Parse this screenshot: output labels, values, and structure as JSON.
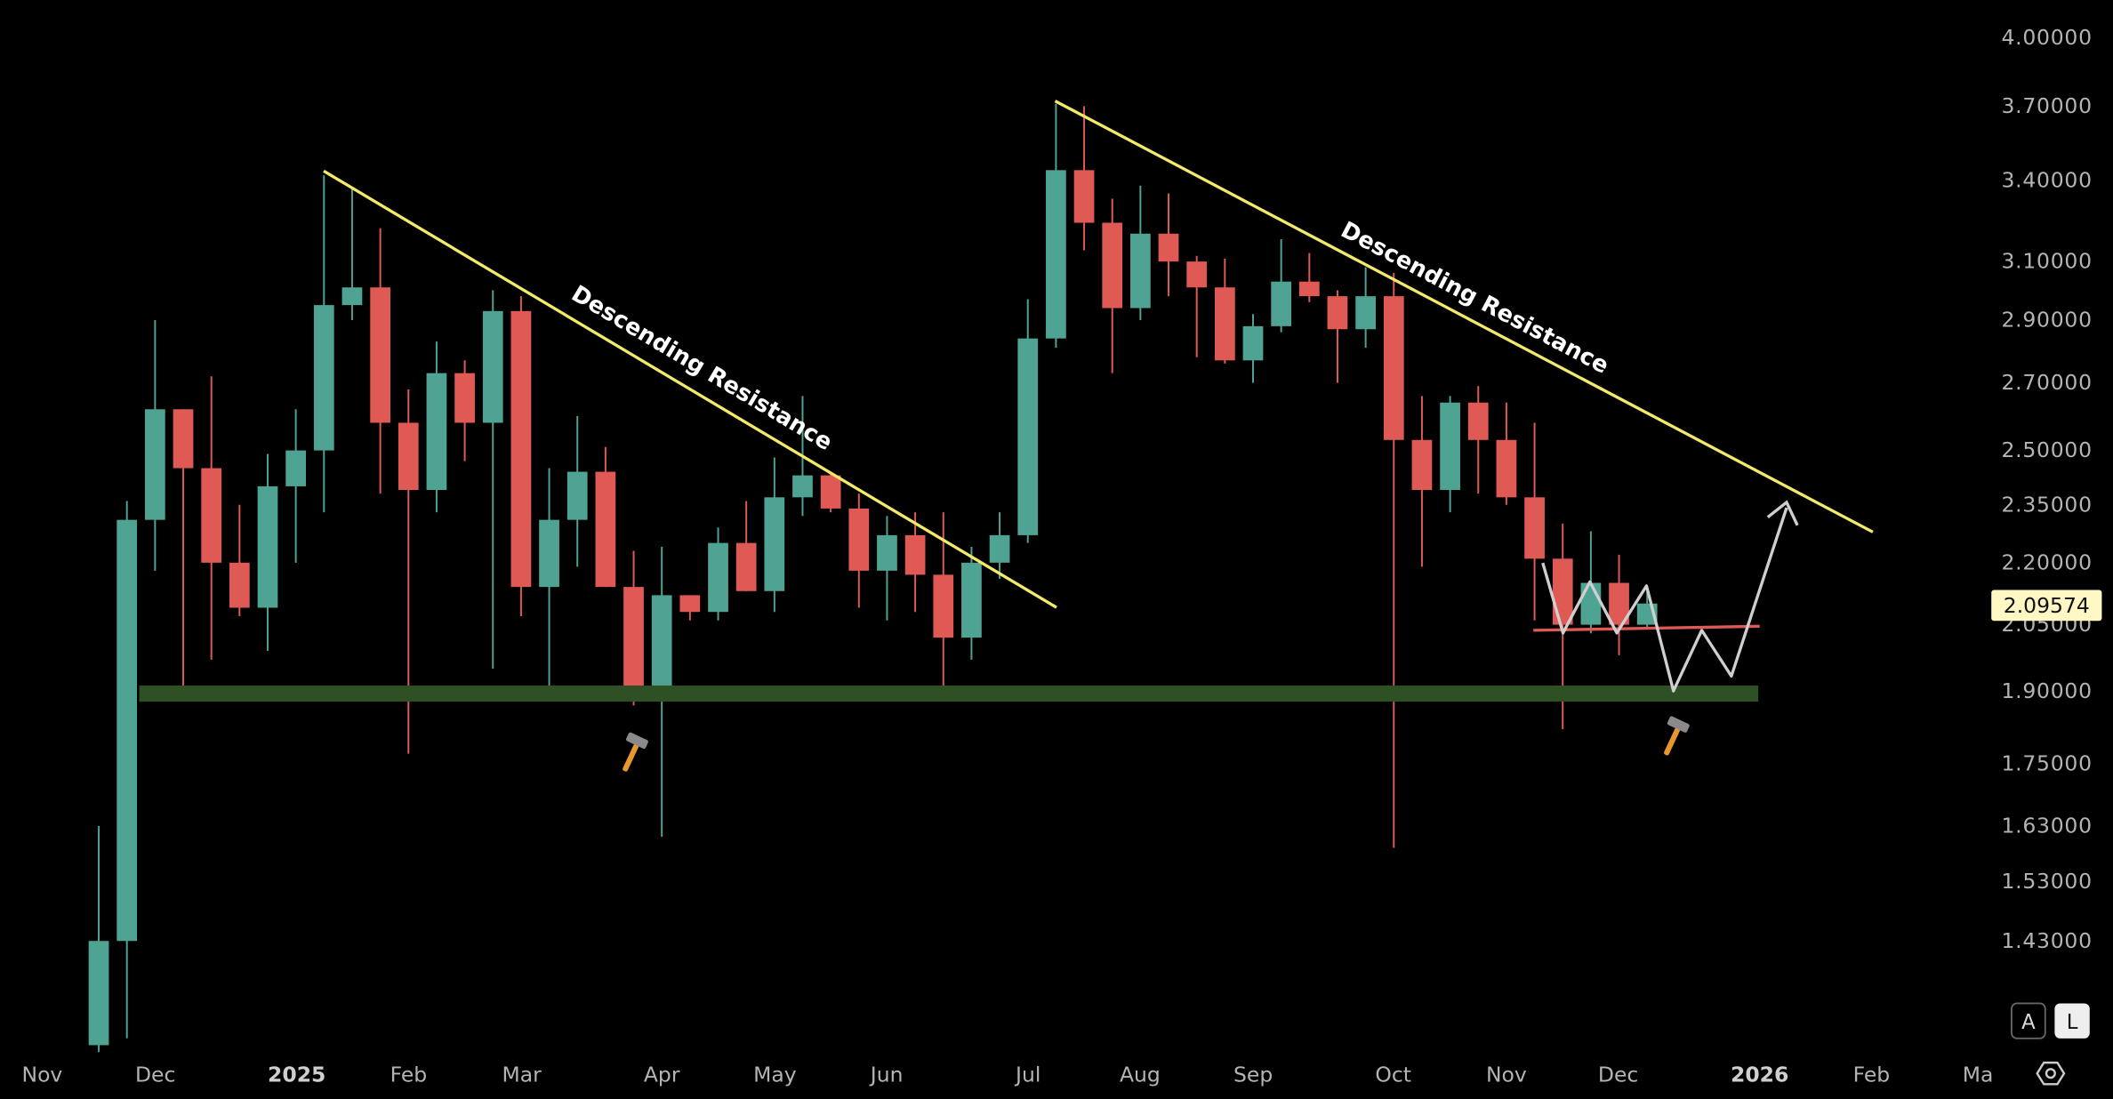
{
  "chart_data": {
    "type": "candlestick",
    "title": "",
    "y_scale": "log",
    "ylim": [
      1.26,
      4.0
    ],
    "y_ticks": [
      "4.00000",
      "3.70000",
      "3.40000",
      "3.10000",
      "2.90000",
      "2.70000",
      "2.50000",
      "2.35000",
      "2.20000",
      "2.05000",
      "1.90000",
      "1.75000",
      "1.63000",
      "1.53000",
      "1.43000"
    ],
    "x_ticks": [
      {
        "label": "Nov",
        "year": false
      },
      {
        "label": "Dec",
        "year": false
      },
      {
        "label": "2025",
        "year": true
      },
      {
        "label": "Feb",
        "year": false
      },
      {
        "label": "Mar",
        "year": false
      },
      {
        "label": "Apr",
        "year": false
      },
      {
        "label": "May",
        "year": false
      },
      {
        "label": "Jun",
        "year": false
      },
      {
        "label": "Jul",
        "year": false
      },
      {
        "label": "Aug",
        "year": false
      },
      {
        "label": "Sep",
        "year": false
      },
      {
        "label": "Oct",
        "year": false
      },
      {
        "label": "Nov",
        "year": false
      },
      {
        "label": "Dec",
        "year": false
      },
      {
        "label": "2026",
        "year": true
      },
      {
        "label": "Feb",
        "year": false
      },
      {
        "label": "Ma",
        "year": false
      }
    ],
    "interval": "weekly",
    "candles": [
      [
        1.27,
        1.43,
        1.63,
        1.26
      ],
      [
        1.43,
        2.31,
        2.36,
        1.28
      ],
      [
        2.31,
        2.62,
        2.9,
        2.18
      ],
      [
        2.62,
        2.45,
        2.62,
        1.91
      ],
      [
        2.45,
        2.2,
        2.72,
        1.97
      ],
      [
        2.2,
        2.09,
        2.35,
        2.07
      ],
      [
        2.09,
        2.4,
        2.49,
        1.99
      ],
      [
        2.4,
        2.5,
        2.62,
        2.2
      ],
      [
        2.5,
        2.95,
        3.42,
        2.33
      ],
      [
        2.95,
        3.01,
        3.37,
        2.9
      ],
      [
        3.01,
        2.58,
        3.22,
        2.38
      ],
      [
        2.58,
        2.39,
        2.68,
        1.77
      ],
      [
        2.39,
        2.73,
        2.83,
        2.33
      ],
      [
        2.73,
        2.58,
        2.77,
        2.47
      ],
      [
        2.58,
        2.93,
        3.0,
        1.95
      ],
      [
        2.93,
        2.14,
        2.98,
        2.07
      ],
      [
        2.14,
        2.31,
        2.45,
        1.9
      ],
      [
        2.31,
        2.44,
        2.6,
        2.19
      ],
      [
        2.44,
        2.14,
        2.51,
        2.14
      ],
      [
        2.14,
        1.91,
        2.23,
        1.87
      ],
      [
        1.91,
        2.12,
        2.24,
        1.61
      ],
      [
        2.12,
        2.08,
        2.12,
        2.06
      ],
      [
        2.08,
        2.25,
        2.29,
        2.06
      ],
      [
        2.25,
        2.13,
        2.36,
        2.13
      ],
      [
        2.13,
        2.37,
        2.48,
        2.08
      ],
      [
        2.37,
        2.43,
        2.66,
        2.32
      ],
      [
        2.43,
        2.34,
        2.44,
        2.33
      ],
      [
        2.34,
        2.18,
        2.38,
        2.09
      ],
      [
        2.18,
        2.27,
        2.32,
        2.06
      ],
      [
        2.27,
        2.17,
        2.33,
        2.08
      ],
      [
        2.17,
        2.02,
        2.33,
        1.91
      ],
      [
        2.02,
        2.2,
        2.24,
        1.97
      ],
      [
        2.2,
        2.27,
        2.33,
        2.16
      ],
      [
        2.27,
        2.84,
        2.97,
        2.25
      ],
      [
        2.84,
        3.44,
        3.71,
        2.81
      ],
      [
        3.44,
        3.24,
        3.7,
        3.14
      ],
      [
        3.24,
        2.94,
        3.33,
        2.73
      ],
      [
        2.94,
        3.2,
        3.38,
        2.9
      ],
      [
        3.2,
        3.1,
        3.35,
        2.98
      ],
      [
        3.1,
        3.01,
        3.12,
        2.78
      ],
      [
        3.01,
        2.77,
        3.11,
        2.76
      ],
      [
        2.77,
        2.88,
        2.92,
        2.7
      ],
      [
        2.88,
        3.03,
        3.18,
        2.86
      ],
      [
        3.03,
        2.98,
        3.13,
        2.96
      ],
      [
        2.98,
        2.87,
        3.0,
        2.7
      ],
      [
        2.87,
        2.98,
        3.08,
        2.81
      ],
      [
        2.98,
        2.53,
        3.06,
        1.59
      ],
      [
        2.53,
        2.39,
        2.66,
        2.19
      ],
      [
        2.39,
        2.64,
        2.66,
        2.33
      ],
      [
        2.64,
        2.53,
        2.69,
        2.38
      ],
      [
        2.53,
        2.37,
        2.64,
        2.35
      ],
      [
        2.37,
        2.21,
        2.58,
        2.06
      ],
      [
        2.21,
        2.05,
        2.3,
        1.82
      ],
      [
        2.05,
        2.15,
        2.28,
        2.03
      ],
      [
        2.15,
        2.05,
        2.22,
        1.98
      ],
      [
        2.05,
        2.1,
        2.13,
        2.04
      ]
    ],
    "candle_fields": [
      "open",
      "close",
      "high",
      "low"
    ],
    "last_price": "2.09574",
    "annotations": {
      "resistance_label_1": "Descending Resistance",
      "resistance_label_2": "Descending Resistance",
      "support_zone": [
        1.87,
        1.9
      ],
      "neckline_price": 2.05
    },
    "colors": {
      "up": "#4fa393",
      "down": "#e05a55",
      "trendline": "#f3ea6a",
      "support": "#2f4f25",
      "neckline": "#e05a55",
      "projection": "#cfcfcf",
      "last_price_bg": "#fff8c4"
    }
  },
  "controls": {
    "auto_label": "A",
    "log_label": "L"
  }
}
